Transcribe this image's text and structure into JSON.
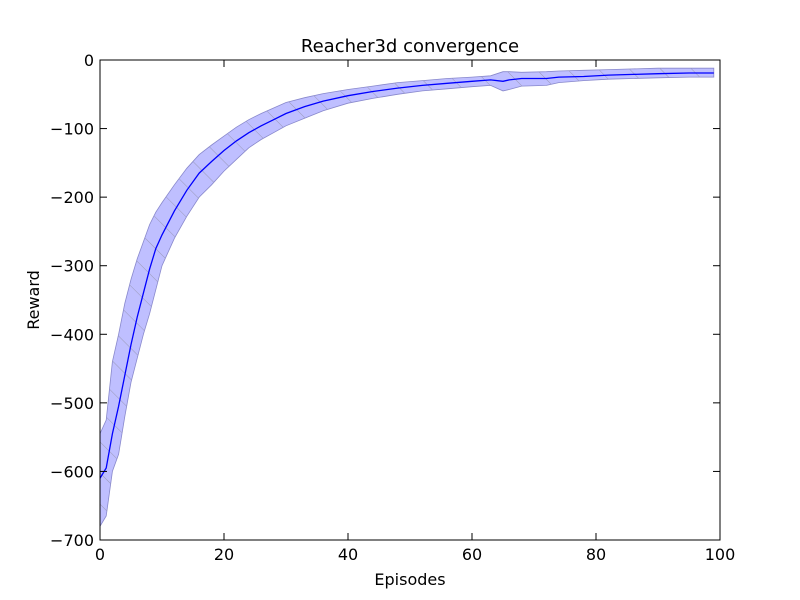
{
  "chart_data": {
    "type": "line",
    "title": "Reacher3d convergence",
    "xlabel": "Episodes",
    "ylabel": "Reward",
    "xlim": [
      0,
      100
    ],
    "ylim": [
      -700,
      0
    ],
    "xticks": [
      0,
      20,
      40,
      60,
      80,
      100
    ],
    "yticks": [
      0,
      -100,
      -200,
      -300,
      -400,
      -500,
      -600,
      -700
    ],
    "xtick_labels": [
      "0",
      "20",
      "40",
      "60",
      "80",
      "100"
    ],
    "ytick_labels": [
      "0",
      "−100",
      "−200",
      "−300",
      "−400",
      "−500",
      "−600",
      "−700"
    ],
    "grid": false,
    "line_color": "#0000ff",
    "band_color": "#bfbfff",
    "band_hatch": "diagonal",
    "series": [
      {
        "x": [
          0,
          1,
          2,
          3,
          4,
          5,
          6,
          7,
          8,
          9,
          10,
          12,
          14,
          16,
          18,
          20,
          22,
          24,
          26,
          28,
          30,
          33,
          36,
          40,
          44,
          48,
          52,
          56,
          60,
          63,
          65,
          66,
          68,
          72,
          74,
          78,
          82,
          86,
          90,
          95,
          99
        ],
        "mean": [
          -610,
          -595,
          -545,
          -505,
          -460,
          -415,
          -375,
          -340,
          -305,
          -275,
          -255,
          -220,
          -190,
          -165,
          -148,
          -132,
          -118,
          -106,
          -96,
          -87,
          -78,
          -68,
          -60,
          -52,
          -46,
          -41,
          -37,
          -34,
          -31,
          -29,
          -31,
          -29,
          -27,
          -27,
          -25,
          -24,
          -22,
          -21,
          -20,
          -19,
          -19
        ],
        "upper": [
          -545,
          -525,
          -440,
          -400,
          -355,
          -320,
          -290,
          -265,
          -240,
          -222,
          -208,
          -182,
          -158,
          -138,
          -124,
          -111,
          -98,
          -87,
          -78,
          -70,
          -62,
          -55,
          -49,
          -43,
          -38,
          -33,
          -30,
          -27,
          -25,
          -23,
          -17,
          -17,
          -18,
          -17,
          -16,
          -15,
          -14,
          -13,
          -12,
          -12,
          -12
        ],
        "lower": [
          -680,
          -665,
          -600,
          -575,
          -520,
          -470,
          -435,
          -400,
          -370,
          -335,
          -300,
          -260,
          -228,
          -200,
          -182,
          -162,
          -145,
          -128,
          -116,
          -106,
          -96,
          -85,
          -74,
          -63,
          -56,
          -50,
          -45,
          -42,
          -39,
          -37,
          -45,
          -43,
          -38,
          -37,
          -33,
          -30,
          -28,
          -27,
          -26,
          -25,
          -25
        ]
      }
    ]
  }
}
